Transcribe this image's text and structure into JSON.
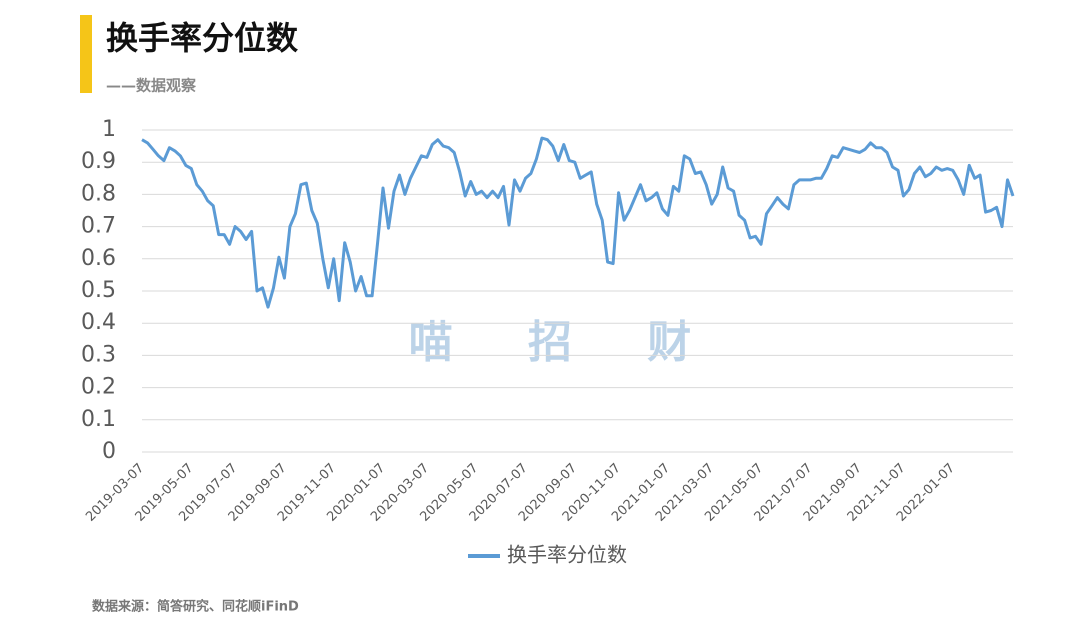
{
  "chart_data": {
    "type": "line",
    "title": "换手率分位数",
    "subtitle": "——数据观察",
    "watermark": "喵 招 财",
    "source": "数据来源：简答研究、同花顺iFinD",
    "categories": [
      "2019-03-07",
      null,
      null,
      null,
      null,
      null,
      null,
      null,
      null,
      "2019-05-07",
      null,
      null,
      null,
      null,
      null,
      null,
      null,
      "2019-07-07",
      null,
      null,
      null,
      null,
      null,
      null,
      null,
      null,
      "2019-09-07",
      null,
      null,
      null,
      null,
      null,
      null,
      null,
      null,
      "2019-11-07",
      null,
      null,
      null,
      null,
      null,
      null,
      null,
      null,
      "2020-01-07",
      null,
      null,
      null,
      null,
      null,
      null,
      null,
      "2020-03-07",
      null,
      null,
      null,
      null,
      null,
      null,
      null,
      null,
      "2020-05-07",
      null,
      null,
      null,
      null,
      null,
      null,
      null,
      null,
      "2020-07-07",
      null,
      null,
      null,
      null,
      null,
      null,
      null,
      null,
      "2020-09-07",
      null,
      null,
      null,
      null,
      null,
      null,
      null,
      "2020-11-07",
      null,
      null,
      null,
      null,
      null,
      null,
      null,
      null,
      "2021-01-07",
      null,
      null,
      null,
      null,
      null,
      null,
      null,
      "2021-03-07",
      null,
      null,
      null,
      null,
      null,
      null,
      null,
      null,
      "2021-05-07",
      null,
      null,
      null,
      null,
      null,
      null,
      null,
      null,
      "2021-07-07",
      null,
      null,
      null,
      null,
      null,
      null,
      null,
      null,
      "2021-09-07",
      null,
      null,
      null,
      null,
      null,
      null,
      null,
      "2021-11-07",
      null,
      null,
      null,
      null,
      null,
      null,
      null,
      null,
      "2022-01-07",
      null,
      null,
      null,
      null,
      null,
      null,
      null,
      null,
      null,
      null,
      null
    ],
    "series": [
      {
        "name": "换手率分位数",
        "color": "#5b9bd5",
        "values": [
          0.97,
          0.96,
          0.94,
          0.92,
          0.905,
          0.945,
          0.935,
          0.92,
          0.89,
          0.88,
          0.83,
          0.81,
          0.78,
          0.765,
          0.675,
          0.675,
          0.645,
          0.7,
          0.685,
          0.66,
          0.685,
          0.5,
          0.51,
          0.45,
          0.51,
          0.605,
          0.54,
          0.7,
          0.74,
          0.83,
          0.835,
          0.75,
          0.71,
          0.6,
          0.51,
          0.6,
          0.47,
          0.65,
          0.59,
          0.5,
          0.545,
          0.485,
          0.485,
          0.65,
          0.82,
          0.695,
          0.81,
          0.86,
          0.8,
          0.85,
          0.885,
          0.92,
          0.915,
          0.955,
          0.97,
          0.95,
          0.945,
          0.93,
          0.87,
          0.795,
          0.84,
          0.8,
          0.81,
          0.79,
          0.81,
          0.79,
          0.825,
          0.705,
          0.845,
          0.81,
          0.85,
          0.865,
          0.91,
          0.975,
          0.97,
          0.95,
          0.905,
          0.955,
          0.905,
          0.9,
          0.85,
          0.86,
          0.87,
          0.77,
          0.72,
          0.59,
          0.585,
          0.805,
          0.72,
          0.75,
          0.79,
          0.83,
          0.78,
          0.79,
          0.805,
          0.755,
          0.735,
          0.825,
          0.81,
          0.92,
          0.91,
          0.865,
          0.87,
          0.83,
          0.77,
          0.8,
          0.885,
          0.82,
          0.81,
          0.735,
          0.72,
          0.665,
          0.67,
          0.645,
          0.74,
          0.765,
          0.79,
          0.77,
          0.755,
          0.83,
          0.845,
          0.845,
          0.845,
          0.85,
          0.85,
          0.88,
          0.92,
          0.915,
          0.945,
          0.94,
          0.935,
          0.93,
          0.94,
          0.96,
          0.945,
          0.945,
          0.93,
          0.885,
          0.875,
          0.795,
          0.815,
          0.865,
          0.885,
          0.855,
          0.865,
          0.885,
          0.875,
          0.88,
          0.875,
          0.845,
          0.8,
          0.89,
          0.85,
          0.86,
          0.745,
          0.75,
          0.76,
          0.7,
          0.845,
          0.795
        ]
      }
    ],
    "ylim": [
      0,
      1
    ],
    "yticks": [
      0,
      0.1,
      0.2,
      0.3,
      0.4,
      0.5,
      0.6,
      0.7,
      0.8,
      0.9,
      1
    ],
    "grid": true,
    "legend": "bottom"
  }
}
